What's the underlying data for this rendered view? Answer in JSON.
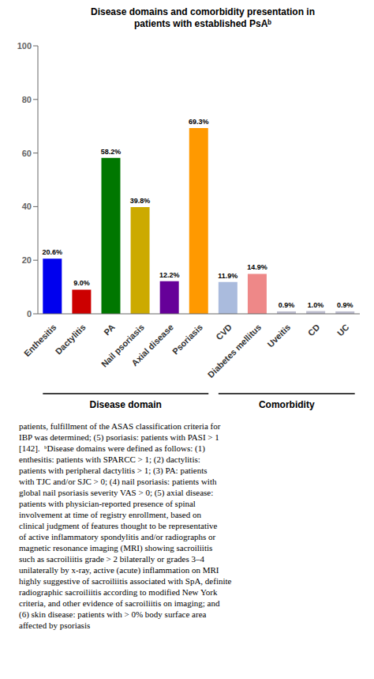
{
  "chart_data": {
    "type": "bar",
    "title": "Disease domains and comorbidity presentation in\npatients with established PsAᵇ",
    "categories": [
      "Enthesitis",
      "Dactylitis",
      "PA",
      "Nail psoriasis",
      "Axial disease",
      "Psoriasis",
      "CVD",
      "Diabetes mellitus",
      "Uveitis",
      "CD",
      "UC"
    ],
    "values": [
      20.6,
      9.0,
      58.2,
      39.8,
      12.2,
      69.3,
      11.9,
      14.9,
      0.9,
      1.0,
      0.9
    ],
    "value_labels": [
      "20.6%",
      "9.0%",
      "58.2%",
      "39.8%",
      "12.2%",
      "69.3%",
      "11.9%",
      "14.9%",
      "0.9%",
      "1.0%",
      "0.9%"
    ],
    "data_labels": true,
    "colors": [
      "#0000ee",
      "#cc0000",
      "#007700",
      "#ccaa00",
      "#660099",
      "#ff9900",
      "#aabbdd",
      "#ee8888",
      "#bbbbcc",
      "#bbbbcc",
      "#bbbbcc"
    ],
    "ylim": [
      0,
      100
    ],
    "yticks": [
      0,
      20,
      40,
      60,
      80,
      100
    ],
    "grid": false,
    "groups": [
      {
        "label": "Disease domain",
        "categories": [
          "Enthesitis",
          "Dactylitis",
          "PA",
          "Nail psoriasis",
          "Axial disease",
          "Psoriasis"
        ]
      },
      {
        "label": "Comorbidity",
        "categories": [
          "CVD",
          "Diabetes mellitus",
          "Uveitis",
          "CD",
          "UC"
        ]
      }
    ],
    "body_text": "patients, fulfillment of the ASAS classification criteria for\nIBP was determined; (5) psoriasis: patients with PASI > 1\n[142].  ᵇDisease domains were defined as follows: (1)\nenthesitis: patients with SPARCC > 1; (2) dactylitis:\npatients with peripheral dactylitis > 1; (3) PA: patients\nwith TJC and/or SJC > 0; (4) nail psoriasis: patients with\nglobal nail psoriasis severity VAS > 0; (5) axial disease:\npatients with physician-reported presence of spinal\ninvolvement at time of registry enrollment, based on\nclinical judgment of features thought to be representative\nof active inflammatory spondylitis and/or radiographs or\nmagnetic resonance imaging (MRI) showing sacroiliitis\nsuch as sacroiliitis grade > 2 bilaterally or grades 3–4\nunilaterally by x-ray, active (acute) inflammation on MRI\nhighly suggestive of sacroiliitis associated with SpA, definite\nradiographic sacroiliitis according to modified New York\ncriteria, and other evidence of sacroiliitis on imaging; and\n(6) skin disease: patients with > 0% body surface area\naffected by psoriasis"
  }
}
